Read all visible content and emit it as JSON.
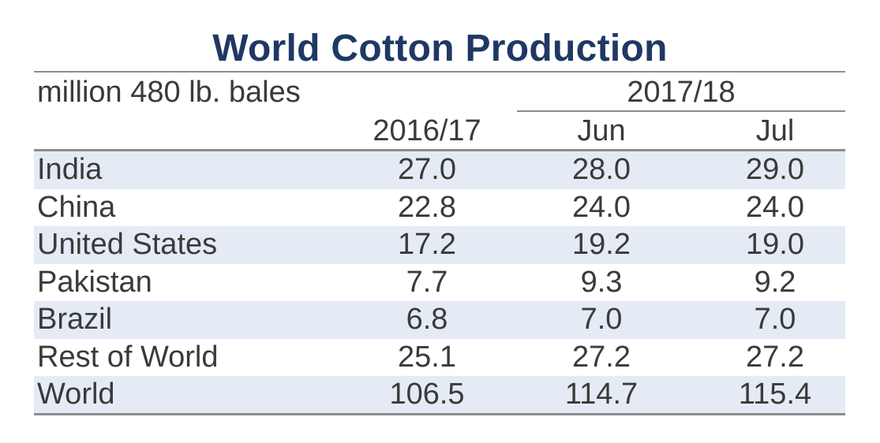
{
  "chart_data": {
    "type": "table",
    "title": "World Cotton Production",
    "units": "million 480 lb. bales",
    "group_header": "2017/18",
    "columns": [
      "2016/17",
      "Jun",
      "Jul"
    ],
    "rows": [
      {
        "label": "India",
        "values": [
          "27.0",
          "28.0",
          "29.0"
        ]
      },
      {
        "label": "China",
        "values": [
          "22.8",
          "24.0",
          "24.0"
        ]
      },
      {
        "label": "United States",
        "values": [
          "17.2",
          "19.2",
          "19.0"
        ]
      },
      {
        "label": "Pakistan",
        "values": [
          "7.7",
          "9.3",
          "9.2"
        ]
      },
      {
        "label": "Brazil",
        "values": [
          "6.8",
          "7.0",
          "7.0"
        ]
      },
      {
        "label": "Rest of World",
        "values": [
          "25.1",
          "27.2",
          "27.2"
        ]
      },
      {
        "label": "World",
        "values": [
          "106.5",
          "114.7",
          "115.4"
        ]
      }
    ],
    "colors": {
      "title": "#1f3864",
      "row_shade": "#e4ebf5",
      "rule": "#8c8c8c",
      "text": "#3a3a3a"
    }
  }
}
